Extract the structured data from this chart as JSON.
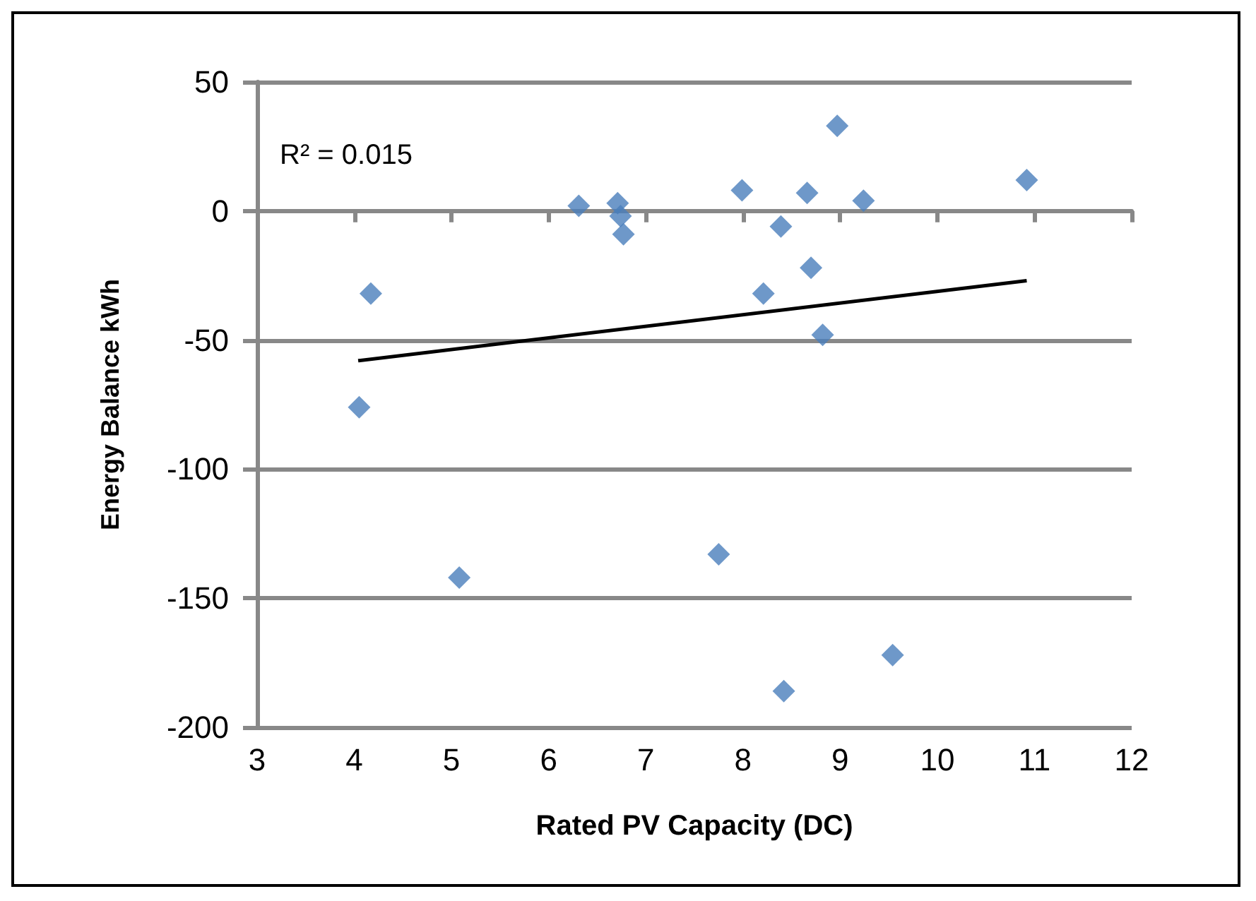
{
  "chart_data": {
    "type": "scatter",
    "xlabel": "Rated PV Capacity (DC)",
    "ylabel": "Energy Balance kWh",
    "xlim": [
      3,
      12
    ],
    "xticks": [
      3,
      4,
      5,
      6,
      7,
      8,
      9,
      10,
      11,
      12
    ],
    "ylim": [
      -200,
      50
    ],
    "yticks": [
      -200,
      -150,
      -100,
      -50,
      0,
      50
    ],
    "grid": "y",
    "marker": "diamond",
    "annotations": [
      "R² = 0.015"
    ],
    "series": [
      {
        "color": "#4a7ebb",
        "x": [
          6.31,
          6.71,
          6.74,
          6.77,
          7.99,
          8.39,
          8.66,
          8.7,
          8.97,
          9.24,
          10.92,
          8.21,
          8.82,
          4.17,
          4.05,
          5.08,
          7.75,
          8.42,
          9.54
        ],
        "values": [
          2,
          3,
          -2,
          -9,
          8,
          -6,
          7,
          -22,
          33,
          4,
          12,
          -32,
          -48,
          -32,
          -76,
          -142,
          -133,
          -186,
          -172
        ]
      },
      {
        "type": "line",
        "color": "#000000",
        "marker": "none",
        "x": [
          4.04,
          10.92
        ],
        "values": [
          -58,
          -27
        ]
      }
    ]
  }
}
